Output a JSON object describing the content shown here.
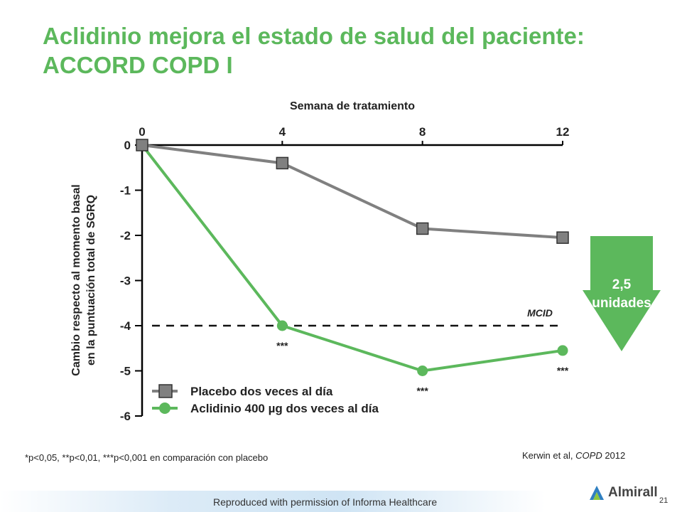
{
  "slide": {
    "title_line1": "Aclidinio mejora el estado de salud del paciente:",
    "title_line2": "ACCORD COPD I",
    "footnote": "*p<0,05, **p<0,01, ***p<0,001 en comparación con placebo",
    "citation_authors": "Kerwin et al, ",
    "citation_journal": "COPD",
    "citation_year": " 2012",
    "credit": "Reproduced with permission of Informa Healthcare",
    "page_number": "21",
    "logo_text": "Almirall",
    "arrow_line1": "2,5",
    "arrow_line2": "unidades"
  },
  "chart_data": {
    "type": "line",
    "xlabel": "Semana de tratamiento",
    "ylabel_line1": "Cambio respecto al momento basal",
    "ylabel_line2": "en la puntuación total de SGRQ",
    "x_ticks": [
      0,
      4,
      8,
      12
    ],
    "y_ticks": [
      0,
      -1,
      -2,
      -3,
      -4,
      -5,
      -6
    ],
    "xlim": [
      0,
      12
    ],
    "ylim": [
      -6,
      0
    ],
    "reference_line": {
      "label": "MCID",
      "y": -4
    },
    "series": [
      {
        "name": "Placebo dos veces al día",
        "marker": "square",
        "color": "#808080",
        "x": [
          0,
          4,
          8,
          12
        ],
        "y": [
          0,
          -0.4,
          -1.85,
          -2.05
        ],
        "annotations": [
          "",
          "",
          "",
          ""
        ]
      },
      {
        "name": "Aclidinio 400 µg dos veces al día",
        "marker": "circle",
        "color": "#5cb85c",
        "x": [
          0,
          4,
          8,
          12
        ],
        "y": [
          0,
          -4.0,
          -5.0,
          -4.55
        ],
        "annotations": [
          "",
          "***",
          "***",
          "***"
        ]
      }
    ],
    "grid": false,
    "legend_position": "bottom-left"
  }
}
